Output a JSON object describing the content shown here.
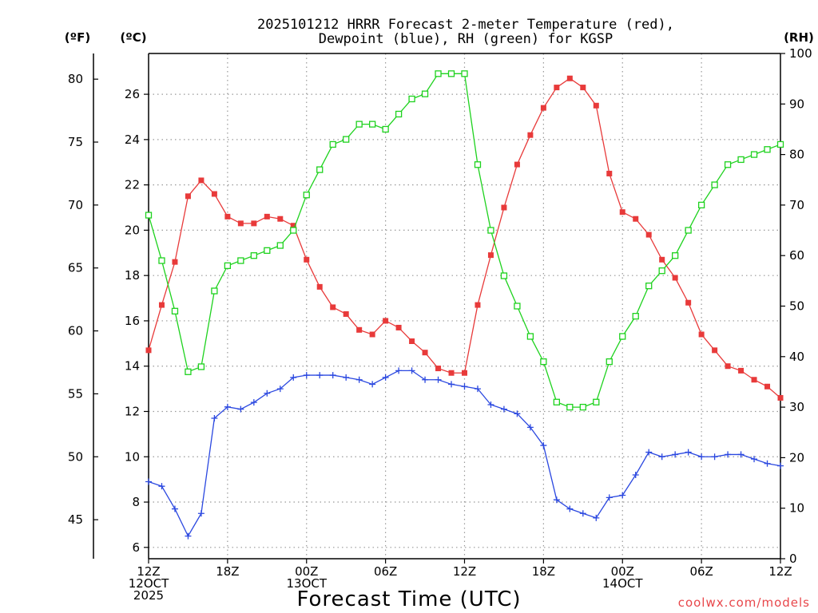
{
  "title_line1": "2025101212 HRRR Forecast 2-meter Temperature (red),",
  "title_line2": "Dewpoint (blue), RH (green) for KGSP",
  "unit_f": "(ºF)",
  "unit_c": "(ºC)",
  "unit_rh": "(RH)",
  "xlabel": "Forecast Time (UTC)",
  "credit": "coolwx.com/models",
  "colors": {
    "temp": "#e83a3a",
    "dewpoint": "#2b48e0",
    "rh": "#1ed21e",
    "grid": "#999999"
  },
  "chart_data": {
    "type": "line",
    "x_hours": [
      0,
      1,
      2,
      3,
      4,
      5,
      6,
      7,
      8,
      9,
      10,
      11,
      12,
      13,
      14,
      15,
      16,
      17,
      18,
      19,
      20,
      21,
      22,
      23,
      24,
      25,
      26,
      27,
      28,
      29,
      30,
      31,
      32,
      33,
      34,
      35,
      36,
      37,
      38,
      39,
      40,
      41,
      42,
      43,
      44,
      45,
      46,
      47,
      48
    ],
    "x_ticks": [
      {
        "hour": 0,
        "lines": [
          "12Z",
          "12OCT",
          "2025"
        ]
      },
      {
        "hour": 6,
        "lines": [
          "18Z"
        ]
      },
      {
        "hour": 12,
        "lines": [
          "00Z",
          "13OCT"
        ]
      },
      {
        "hour": 18,
        "lines": [
          "06Z"
        ]
      },
      {
        "hour": 24,
        "lines": [
          "12Z"
        ]
      },
      {
        "hour": 30,
        "lines": [
          "18Z"
        ]
      },
      {
        "hour": 36,
        "lines": [
          "00Z",
          "14OCT"
        ]
      },
      {
        "hour": 42,
        "lines": [
          "06Z"
        ]
      },
      {
        "hour": 48,
        "lines": [
          "12Z"
        ]
      }
    ],
    "xlim": [
      0,
      48
    ],
    "y_left_c": {
      "lim": [
        5.5,
        27.8
      ],
      "ticks": [
        6,
        8,
        10,
        12,
        14,
        16,
        18,
        20,
        22,
        24,
        26
      ]
    },
    "y_left_f": {
      "ticks": [
        45,
        50,
        55,
        60,
        65,
        70,
        75,
        80
      ]
    },
    "y_right_rh": {
      "lim": [
        0,
        100
      ],
      "ticks": [
        0,
        10,
        20,
        30,
        40,
        50,
        60,
        70,
        80,
        90,
        100
      ]
    },
    "series": [
      {
        "name": "Temperature",
        "axis": "c",
        "values": [
          14.7,
          16.7,
          18.6,
          21.5,
          22.2,
          21.6,
          20.6,
          20.3,
          20.3,
          20.6,
          20.5,
          20.2,
          18.7,
          17.5,
          16.6,
          16.3,
          15.6,
          15.4,
          16.0,
          15.7,
          15.1,
          14.6,
          13.9,
          13.7,
          13.7,
          16.7,
          18.9,
          21.0,
          22.9,
          24.2,
          25.4,
          26.3,
          26.7,
          26.3,
          25.5,
          22.5,
          20.8,
          20.5,
          19.8,
          18.7,
          17.9,
          16.8,
          15.4,
          14.7,
          14.0,
          13.8,
          13.4,
          13.1,
          12.6
        ]
      },
      {
        "name": "Dewpoint",
        "axis": "c",
        "values": [
          8.9,
          8.7,
          7.7,
          6.5,
          7.5,
          11.7,
          12.2,
          12.1,
          12.4,
          12.8,
          13.0,
          13.5,
          13.6,
          13.6,
          13.6,
          13.5,
          13.4,
          13.2,
          13.5,
          13.8,
          13.8,
          13.4,
          13.4,
          13.2,
          13.1,
          13.0,
          12.3,
          12.1,
          11.9,
          11.3,
          10.5,
          8.1,
          7.7,
          7.5,
          7.3,
          8.2,
          8.3,
          9.2,
          10.2,
          10.0,
          10.1,
          10.2,
          10.0,
          10.0,
          10.1,
          10.1,
          9.9,
          9.7,
          9.6
        ]
      },
      {
        "name": "RH",
        "axis": "rh",
        "values": [
          68,
          59,
          49,
          37,
          38,
          53,
          58,
          59,
          60,
          61,
          62,
          65,
          72,
          77,
          82,
          83,
          86,
          86,
          85,
          88,
          91,
          92,
          96,
          96,
          96,
          78,
          65,
          56,
          50,
          44,
          39,
          31,
          30,
          30,
          31,
          39,
          44,
          48,
          54,
          57,
          60,
          65,
          70,
          74,
          78,
          79,
          80,
          81,
          82
        ]
      }
    ]
  }
}
